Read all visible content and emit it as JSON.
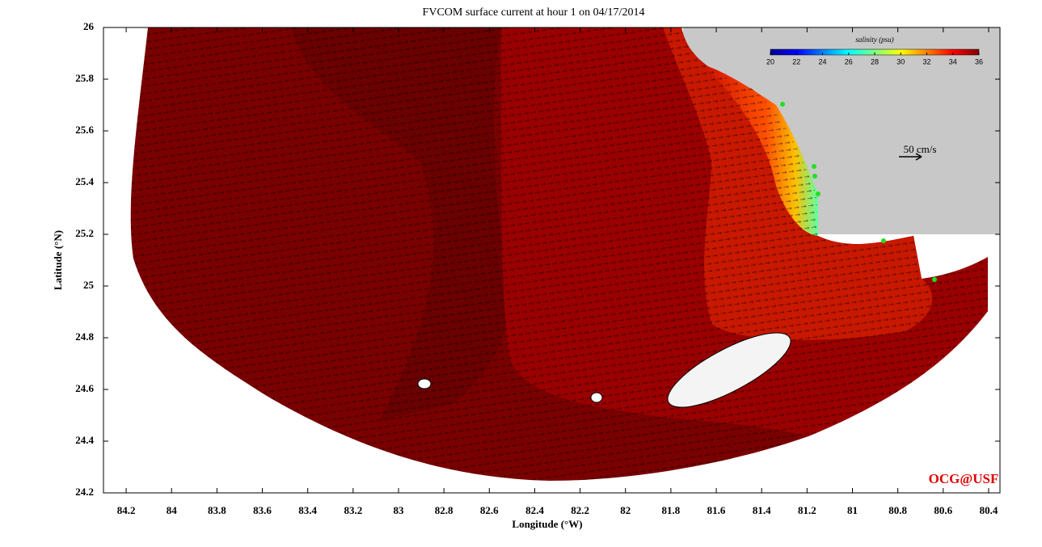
{
  "chart_data": {
    "type": "map",
    "title": "FVCOM surface current at hour 1 on 04/17/2014",
    "xlabel": "Longitude (°W)",
    "ylabel": "Latitude (°N)",
    "xlim": [
      84.3,
      80.35
    ],
    "xticks": [
      84.2,
      84,
      83.8,
      83.6,
      83.4,
      83.2,
      83,
      82.8,
      82.6,
      82.4,
      82.2,
      82,
      81.8,
      81.6,
      81.4,
      81.2,
      81,
      80.8,
      80.6,
      80.4
    ],
    "ylim": [
      24.2,
      26
    ],
    "yticks": [
      24.2,
      24.4,
      24.6,
      24.8,
      25,
      25.2,
      25.4,
      25.6,
      25.8,
      26
    ],
    "colorbar": {
      "label": "salinity (psu)",
      "lim": [
        20,
        36
      ],
      "ticks": [
        20,
        22,
        24,
        26,
        28,
        30,
        32,
        34,
        36
      ],
      "colors": [
        "#00008f",
        "#0000ff",
        "#0080ff",
        "#00ffff",
        "#80ff80",
        "#ffff00",
        "#ff8000",
        "#ff0000",
        "#800000"
      ]
    },
    "scale_label": "50 cm/s",
    "credit": "OCG@USF"
  }
}
